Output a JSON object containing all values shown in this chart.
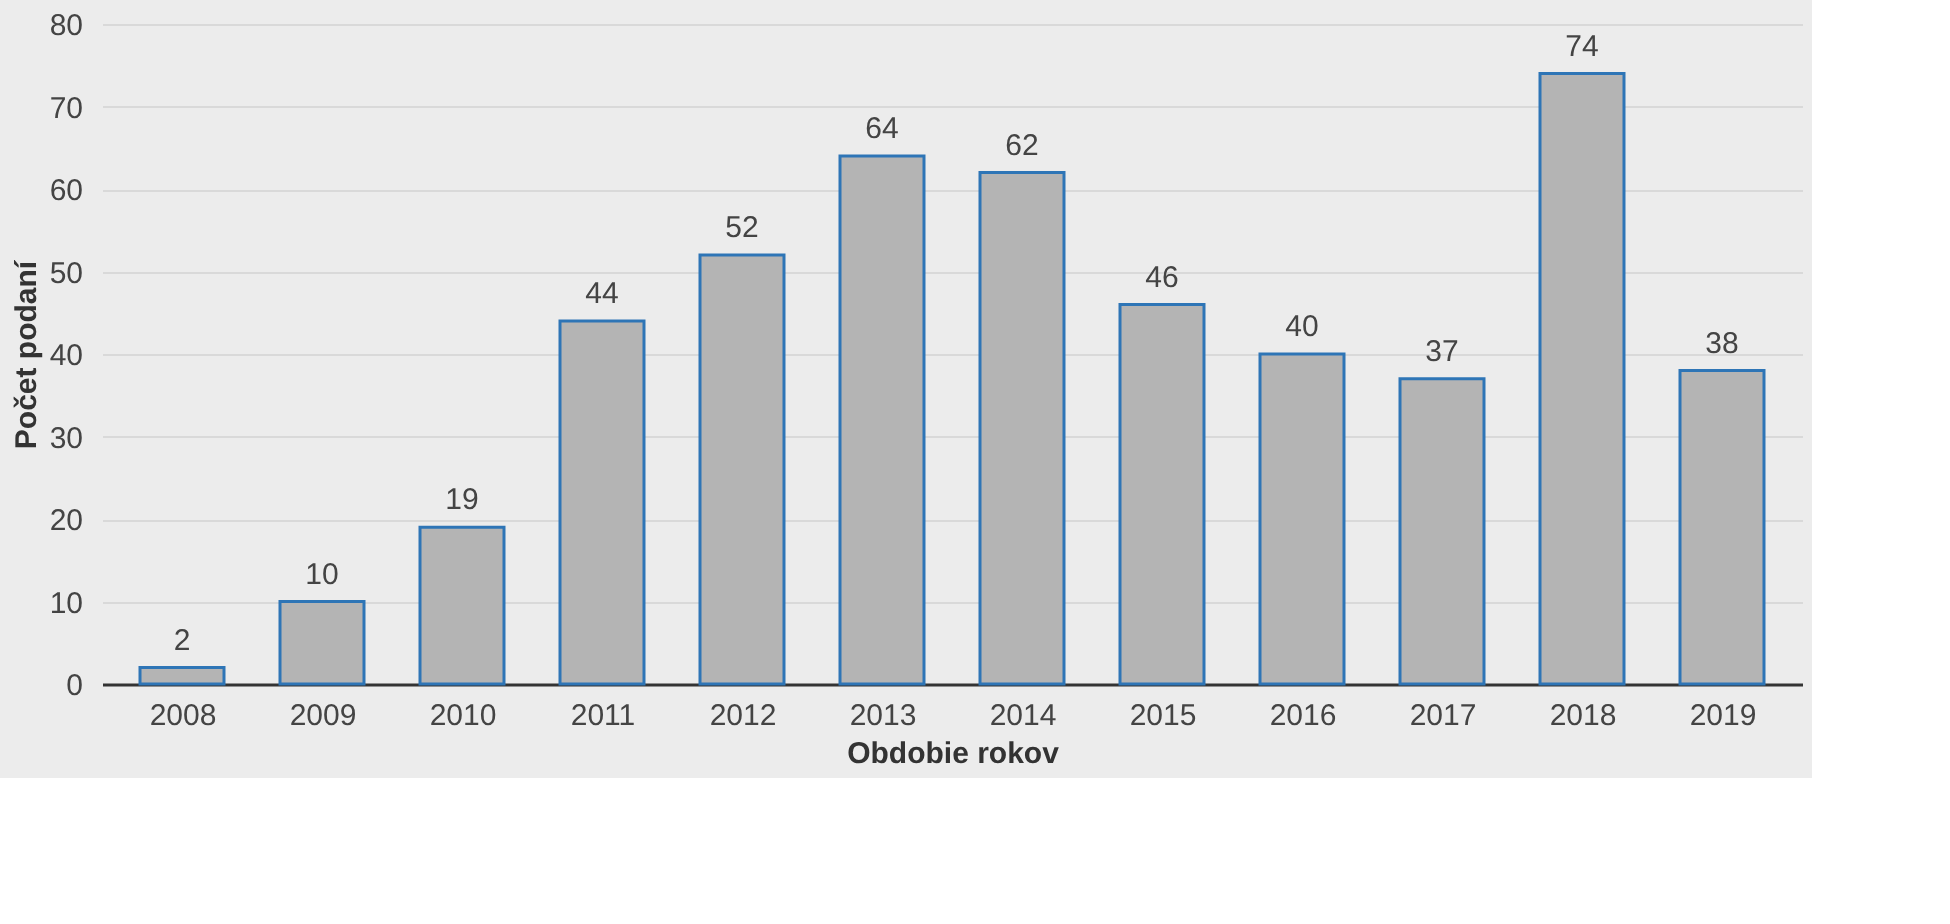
{
  "chart_data": {
    "type": "bar",
    "xlabel": "Obdobie rokov",
    "ylabel": "Počet podaní",
    "categories": [
      "2008",
      "2009",
      "2010",
      "2011",
      "2012",
      "2013",
      "2014",
      "2015",
      "2016",
      "2017",
      "2018",
      "2019"
    ],
    "values": [
      2,
      10,
      19,
      44,
      52,
      64,
      62,
      46,
      40,
      37,
      74,
      38
    ],
    "color": "#b4b4b4",
    "ylim": [
      0,
      80
    ],
    "yticks": [
      0,
      10,
      20,
      30,
      40,
      50,
      60,
      70,
      80
    ],
    "grid": "y",
    "data_labels": true
  }
}
